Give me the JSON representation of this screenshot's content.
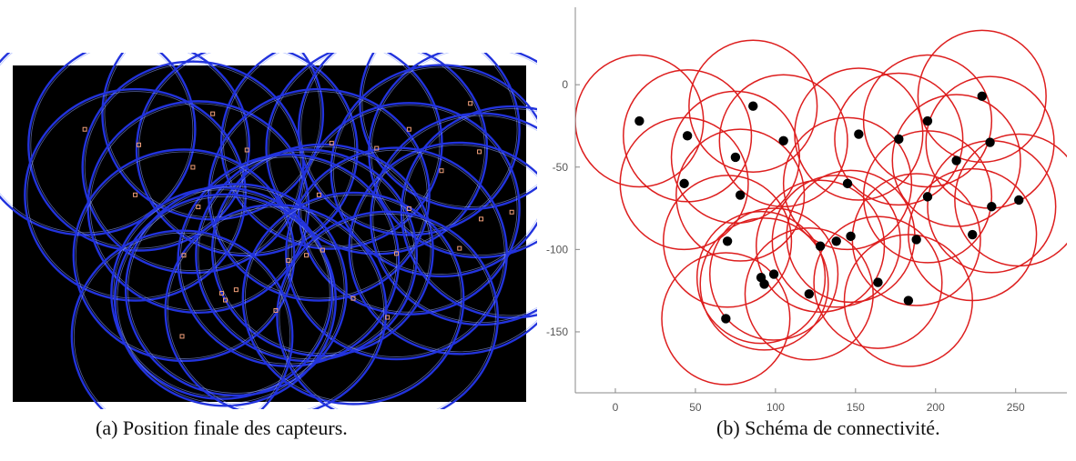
{
  "captions": {
    "a": "(a) Position finale des capteurs.",
    "b": "(b) Schéma de connectivité."
  },
  "colors": {
    "panel_a_background": "#000000",
    "panel_a_circles": "#2233dd",
    "panel_a_sensor_markers": "#f2a07a",
    "panel_b_circles": "#dd1e1e",
    "panel_b_points": "#000000",
    "axis": "#888888",
    "tick_label": "#555555"
  },
  "icons": {
    "panel_a_marker": "small-hollow-square",
    "panel_b_marker": "filled-circle"
  },
  "chart_data": [
    {
      "panel": "a",
      "type": "scatter",
      "title": "",
      "xlabel": "",
      "ylabel": "",
      "axes_visible": false,
      "grid": false,
      "xlim": [
        -25,
        260
      ],
      "ylim": [
        -180,
        15
      ],
      "coverage_radius": 25,
      "points": [
        {
          "x": 15,
          "y": -22
        },
        {
          "x": 45,
          "y": -31
        },
        {
          "x": 86,
          "y": -13
        },
        {
          "x": 105,
          "y": -34
        },
        {
          "x": 152,
          "y": -30
        },
        {
          "x": 177,
          "y": -33
        },
        {
          "x": 195,
          "y": -22
        },
        {
          "x": 229,
          "y": -7
        },
        {
          "x": 234,
          "y": -35
        },
        {
          "x": 75,
          "y": -44
        },
        {
          "x": 213,
          "y": -46
        },
        {
          "x": 43,
          "y": -60
        },
        {
          "x": 78,
          "y": -67
        },
        {
          "x": 145,
          "y": -60
        },
        {
          "x": 195,
          "y": -68
        },
        {
          "x": 252,
          "y": -70
        },
        {
          "x": 235,
          "y": -74
        },
        {
          "x": 223,
          "y": -91
        },
        {
          "x": 147,
          "y": -92
        },
        {
          "x": 138,
          "y": -95
        },
        {
          "x": 70,
          "y": -95
        },
        {
          "x": 128,
          "y": -98
        },
        {
          "x": 188,
          "y": -94
        },
        {
          "x": 91,
          "y": -117
        },
        {
          "x": 99,
          "y": -115
        },
        {
          "x": 93,
          "y": -121
        },
        {
          "x": 164,
          "y": -120
        },
        {
          "x": 121,
          "y": -127
        },
        {
          "x": 183,
          "y": -131
        },
        {
          "x": 69,
          "y": -142
        }
      ]
    },
    {
      "panel": "b",
      "type": "scatter",
      "title": "",
      "xlabel": "",
      "ylabel": "",
      "xlim": [
        -25,
        282
      ],
      "ylim": [
        -187,
        47
      ],
      "xticks": [
        0,
        50,
        100,
        150,
        200,
        250
      ],
      "yticks": [
        0,
        -50,
        -100,
        -150
      ],
      "xtick_labels": [
        "0",
        "50",
        "100",
        "150",
        "200",
        "250"
      ],
      "ytick_labels": [
        "0",
        "-50",
        "-100",
        "-150"
      ],
      "grid": false,
      "coverage_radius": 40,
      "points": [
        {
          "x": 15,
          "y": -22
        },
        {
          "x": 45,
          "y": -31
        },
        {
          "x": 86,
          "y": -13
        },
        {
          "x": 105,
          "y": -34
        },
        {
          "x": 152,
          "y": -30
        },
        {
          "x": 177,
          "y": -33
        },
        {
          "x": 195,
          "y": -22
        },
        {
          "x": 229,
          "y": -7
        },
        {
          "x": 234,
          "y": -35
        },
        {
          "x": 75,
          "y": -44
        },
        {
          "x": 213,
          "y": -46
        },
        {
          "x": 43,
          "y": -60
        },
        {
          "x": 78,
          "y": -67
        },
        {
          "x": 145,
          "y": -60
        },
        {
          "x": 195,
          "y": -68
        },
        {
          "x": 252,
          "y": -70
        },
        {
          "x": 235,
          "y": -74
        },
        {
          "x": 223,
          "y": -91
        },
        {
          "x": 147,
          "y": -92
        },
        {
          "x": 138,
          "y": -95
        },
        {
          "x": 70,
          "y": -95
        },
        {
          "x": 128,
          "y": -98
        },
        {
          "x": 188,
          "y": -94
        },
        {
          "x": 91,
          "y": -117
        },
        {
          "x": 99,
          "y": -115
        },
        {
          "x": 93,
          "y": -121
        },
        {
          "x": 164,
          "y": -120
        },
        {
          "x": 121,
          "y": -127
        },
        {
          "x": 183,
          "y": -131
        },
        {
          "x": 69,
          "y": -142
        }
      ]
    }
  ]
}
